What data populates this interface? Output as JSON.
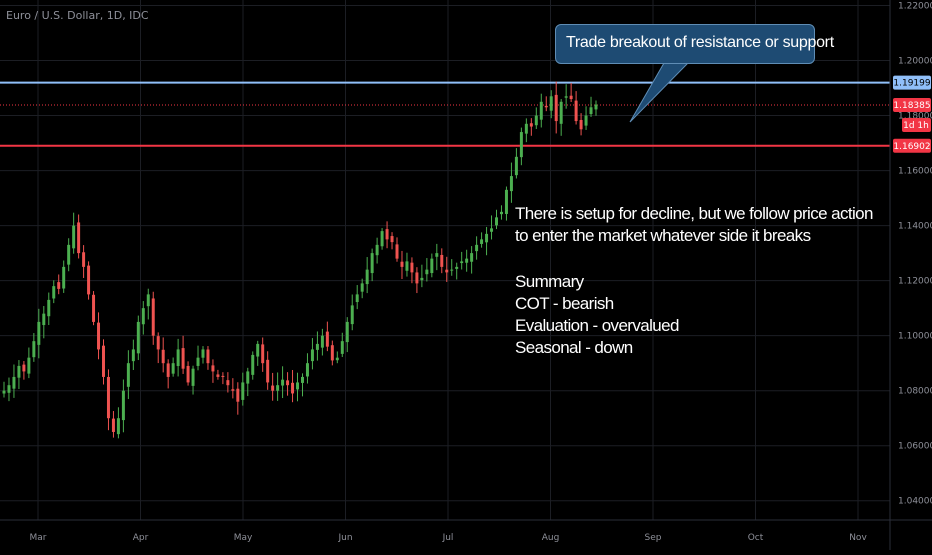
{
  "title": "Euro / U.S. Dollar, 1D, IDC",
  "chart_data": {
    "type": "candlestick",
    "symbol": "Euro / U.S. Dollar, 1D, IDC",
    "timeframe": "1D",
    "x_tick_labels": [
      "Mar",
      "Apr",
      "May",
      "Jun",
      "Jul",
      "Aug",
      "Sep",
      "Oct",
      "Nov"
    ],
    "y_tick_labels": [
      "1.22000",
      "1.20000",
      "1.18000",
      "1.16000",
      "1.14000",
      "1.12000",
      "1.10000",
      "1.08000",
      "1.06000",
      "1.04000"
    ],
    "ylim": [
      1.033,
      1.222
    ],
    "grid": true,
    "colors": {
      "up": "#26a69a",
      "down": "#ef5350",
      "upGreen": "#4caf50",
      "background": "#000000",
      "grid": "#1c1e24",
      "resistance": "#90bff9",
      "support": "#f23645",
      "current": "#f23645"
    },
    "horizontal_lines": [
      {
        "name": "resistance",
        "value": 1.19199,
        "label": "1.19199"
      },
      {
        "name": "current-price",
        "value": 1.18385,
        "label": "1.18385"
      },
      {
        "name": "support",
        "value": 1.16902,
        "label": "1.16902"
      }
    ],
    "countdown_label": "1d 1h",
    "close_series": [
      1.08,
      1.082,
      1.085,
      1.089,
      1.087,
      1.092,
      1.098,
      1.105,
      1.108,
      1.113,
      1.118,
      1.117,
      1.125,
      1.133,
      1.14,
      1.13,
      1.125,
      1.115,
      1.105,
      1.095,
      1.085,
      1.07,
      1.065,
      1.07,
      1.08,
      1.09,
      1.095,
      1.105,
      1.11,
      1.115,
      1.1,
      1.095,
      1.09,
      1.085,
      1.09,
      1.095,
      1.088,
      1.083,
      1.088,
      1.092,
      1.095,
      1.09,
      1.087,
      1.085,
      1.085,
      1.082,
      1.08,
      1.076,
      1.083,
      1.087,
      1.093,
      1.097,
      1.09,
      1.083,
      1.08,
      1.082,
      1.084,
      1.082,
      1.079,
      1.083,
      1.085,
      1.09,
      1.095,
      1.097,
      1.1,
      1.096,
      1.091,
      1.092,
      1.098,
      1.105,
      1.111,
      1.115,
      1.119,
      1.124,
      1.13,
      1.133,
      1.138,
      1.135,
      1.134,
      1.128,
      1.125,
      1.127,
      1.123,
      1.119,
      1.121,
      1.124,
      1.128,
      1.13,
      1.125,
      1.123,
      1.124,
      1.125,
      1.127,
      1.128,
      1.13,
      1.133,
      1.135,
      1.137,
      1.139,
      1.143,
      1.145,
      1.153,
      1.158,
      1.165,
      1.174,
      1.177,
      1.176,
      1.18,
      1.185,
      1.183,
      1.187,
      1.178,
      1.185,
      1.187,
      1.186,
      1.178,
      1.175,
      1.18,
      1.183,
      1.184
    ],
    "annotations": {
      "callout": "Trade breakout of resistance or support",
      "text_lines": [
        "There is setup for decline, but we follow price action",
        "to enter the market whatever side it breaks",
        "",
        "Summary",
        "COT - bearish",
        "Evaluation - overvalued",
        "Seasonal - down"
      ]
    }
  }
}
